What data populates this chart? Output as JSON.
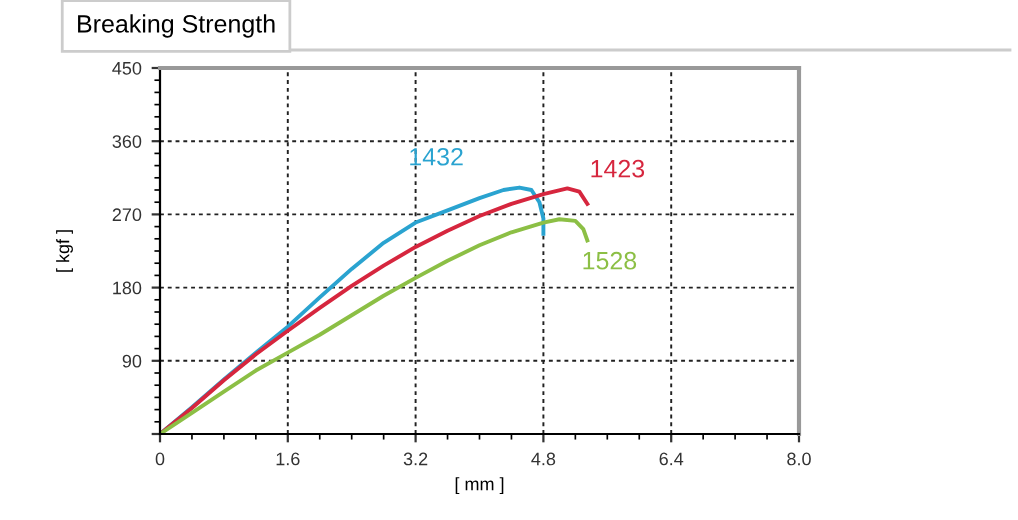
{
  "chart_data": {
    "type": "line",
    "title": "Breaking Strength",
    "xlabel": "[ mm ]",
    "ylabel": "[ kgf ]",
    "xlim": [
      0,
      8.0
    ],
    "xticks": [
      0,
      1.6,
      3.2,
      4.8,
      6.4,
      {
        "value": 8.0,
        "label": "8.0"
      }
    ],
    "ylim": [
      0,
      450
    ],
    "yticks": [
      {
        "value": 0,
        "label": null
      },
      90,
      180,
      270,
      360,
      450
    ],
    "grid": true,
    "legend": false,
    "marker": "none",
    "line_style": "solid",
    "series": [
      {
        "name": "1432",
        "color": "#2aa3d0",
        "x": [
          0,
          0.4,
          0.8,
          1.2,
          1.6,
          2.0,
          2.4,
          2.8,
          3.2,
          3.6,
          4.0,
          4.3,
          4.5,
          4.65,
          4.75,
          4.8,
          4.8
        ],
        "values": [
          0,
          33,
          67,
          100,
          132,
          168,
          203,
          235,
          260,
          275,
          290,
          300,
          303,
          300,
          285,
          265,
          246
        ]
      },
      {
        "name": "1423",
        "color": "#d6263e",
        "x": [
          0,
          0.4,
          0.8,
          1.2,
          1.6,
          2.0,
          2.4,
          2.8,
          3.2,
          3.6,
          4.0,
          4.4,
          4.8,
          5.1,
          5.25,
          5.35
        ],
        "values": [
          0,
          32,
          66,
          98,
          127,
          155,
          182,
          207,
          230,
          250,
          268,
          283,
          295,
          302,
          298,
          283
        ]
      },
      {
        "name": "1528",
        "color": "#8cbf45",
        "x": [
          0,
          0.4,
          0.8,
          1.2,
          1.6,
          2.0,
          2.4,
          2.8,
          3.2,
          3.6,
          4.0,
          4.4,
          4.8,
          5.0,
          5.2,
          5.3,
          5.35
        ],
        "values": [
          0,
          26,
          52,
          78,
          100,
          122,
          146,
          170,
          192,
          213,
          232,
          248,
          260,
          264,
          262,
          252,
          238
        ]
      }
    ]
  }
}
